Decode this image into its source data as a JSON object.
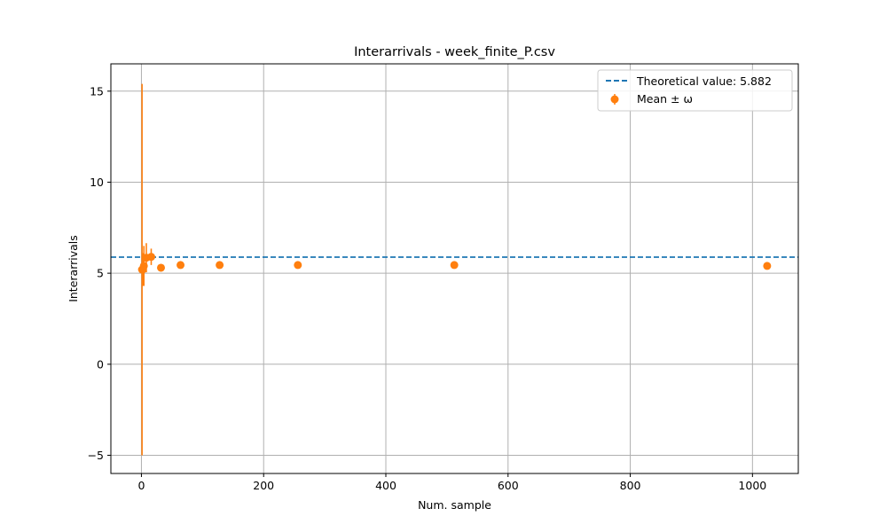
{
  "chart_data": {
    "type": "scatter",
    "title": "Interarrivals - week_finite_P.csv",
    "xlabel": "Num. sample",
    "ylabel": "Interarrivals",
    "xlim": [
      -50,
      1075
    ],
    "ylim": [
      -6,
      16.5
    ],
    "xticks": [
      0,
      200,
      400,
      600,
      800,
      1000
    ],
    "yticks": [
      -5,
      0,
      5,
      10,
      15
    ],
    "xtick_labels": [
      "0",
      "200",
      "400",
      "600",
      "800",
      "1000"
    ],
    "ytick_labels": [
      "−5",
      "0",
      "5",
      "10",
      "15"
    ],
    "grid": true,
    "legend_position": "top-right",
    "theoretical": {
      "name": "Theoretical value: 5.882",
      "value": 5.882,
      "color": "#1f77b4",
      "style": "dashed"
    },
    "series": [
      {
        "name": "Mean ± ω",
        "color": "#ff7f0e",
        "x": [
          1,
          2,
          4,
          8,
          16,
          32,
          64,
          128,
          256,
          512,
          1024
        ],
        "y": [
          5.2,
          5.2,
          5.4,
          5.85,
          5.9,
          5.3,
          5.45,
          5.45,
          5.45,
          5.45,
          5.4
        ],
        "err": [
          10.2,
          0.9,
          1.1,
          0.8,
          0.45,
          0.2,
          0.1,
          0.08,
          0.06,
          0.04,
          0.03
        ]
      }
    ]
  }
}
